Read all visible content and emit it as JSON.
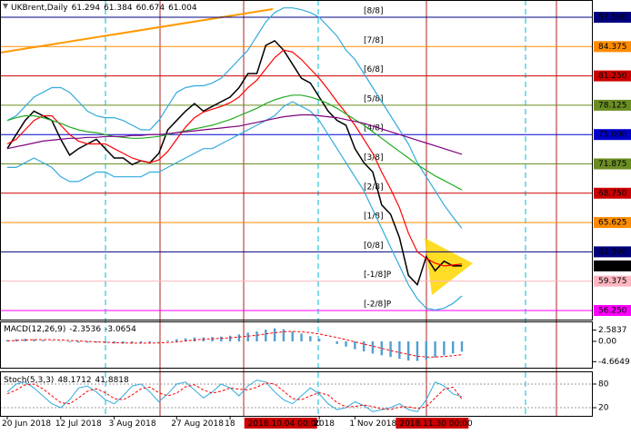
{
  "chart_data": [
    {
      "type": "line",
      "symbol": "UKBrent,Daily",
      "ohlc": [
        61.294,
        61.384,
        60.674,
        61.004
      ],
      "categories": [
        "20 Jun 2018",
        null,
        null,
        null,
        null,
        null,
        "12 Jul 2018",
        null,
        null,
        null,
        null,
        null,
        "3 Aug 2018",
        null,
        null,
        null,
        null,
        null,
        null,
        "27 Aug 2018",
        null,
        null,
        null,
        null,
        null,
        "18",
        null,
        "2018.10.04 00:00",
        null,
        null,
        null,
        null,
        null,
        null,
        null,
        "2018",
        null,
        null,
        null,
        "1 Nov 2018",
        null,
        null,
        null,
        null,
        "2018.11.30 00:00",
        null,
        null,
        null,
        null,
        null,
        null,
        null
      ],
      "series": [
        {
          "color": "#000000",
          "values": [
            73.5,
            75,
            76.5,
            77.5,
            77,
            76.5,
            74.5,
            72.8,
            73.5,
            74,
            74.5,
            73.5,
            72.5,
            72.5,
            71.8,
            72.2,
            72,
            73,
            75.5,
            76.5,
            77.5,
            78.3,
            77.5,
            78,
            78.5,
            79,
            80,
            81.5,
            81.5,
            84.5,
            85,
            84,
            82.5,
            81,
            80.5,
            79,
            77.5,
            76.5,
            76,
            73.5,
            72,
            71,
            67.5,
            66.5,
            64,
            60,
            59,
            62,
            60.5,
            61.5,
            61,
            61.004
          ]
        },
        {
          "color": "#ff0000",
          "values": [
            74,
            74.5,
            75.5,
            76.5,
            77,
            77,
            76,
            75,
            74.3,
            74,
            74,
            74,
            73.5,
            73,
            72.5,
            72.2,
            72,
            72.3,
            73.2,
            74.5,
            75.8,
            76.8,
            77.4,
            77.7,
            78,
            78.4,
            79,
            80,
            80.8,
            82,
            83.2,
            84,
            83.8,
            83,
            82,
            81,
            79.8,
            78.5,
            77.3,
            76,
            74.5,
            73,
            71,
            69.2,
            67.2,
            64.5,
            62.5,
            61.8,
            61.3,
            61,
            61.1,
            61.2
          ]
        },
        {
          "color": "#33aadd",
          "values": [
            76.5,
            77,
            78,
            79,
            79.5,
            80,
            80,
            79.5,
            78.5,
            77.5,
            77,
            76.8,
            76.8,
            76.5,
            76,
            75.5,
            75.5,
            76.5,
            78,
            79.5,
            80,
            80.2,
            80.2,
            80.5,
            81,
            82,
            83,
            84,
            85.5,
            87,
            88,
            88.5,
            88.5,
            88.3,
            88,
            87.5,
            86.5,
            85.5,
            84,
            83,
            81.5,
            80,
            78.5,
            77,
            75.5,
            74,
            72,
            70.5,
            69,
            67.5,
            66.2,
            65
          ]
        },
        {
          "color": "#33aadd",
          "values": [
            71.5,
            71.5,
            72,
            72.5,
            72,
            71.5,
            70.5,
            70,
            70,
            70.5,
            71,
            71,
            70.5,
            70.5,
            70.5,
            70.5,
            71,
            71,
            71.5,
            72,
            72.5,
            73,
            73.5,
            73.5,
            74,
            74.5,
            75,
            75.5,
            76,
            76.5,
            77,
            78,
            78.5,
            78,
            77.5,
            76.5,
            75,
            73.5,
            72,
            70.5,
            69,
            67,
            65,
            63,
            61,
            59,
            57.5,
            56.5,
            56.3,
            56.5,
            57,
            57.8
          ]
        },
        {
          "color": "#22aa22",
          "values": [
            76.5,
            76.8,
            77,
            77,
            76.8,
            76.5,
            76.2,
            75.8,
            75.5,
            75.3,
            75.2,
            75,
            74.8,
            74.7,
            74.6,
            74.6,
            74.7,
            74.8,
            75,
            75.2,
            75.4,
            75.6,
            75.8,
            76,
            76.3,
            76.6,
            77,
            77.4,
            77.8,
            78.3,
            78.7,
            79,
            79.2,
            79.2,
            79,
            78.7,
            78.3,
            77.8,
            77.2,
            76.6,
            76,
            75.3,
            74.6,
            73.9,
            73.2,
            72.5,
            71.8,
            71.2,
            70.6,
            70.1,
            69.6,
            69.1
          ]
        },
        {
          "color": "#800080",
          "values": [
            73.5,
            73.7,
            73.9,
            74.1,
            74.3,
            74.4,
            74.5,
            74.6,
            74.6,
            74.7,
            74.7,
            74.8,
            74.8,
            74.8,
            74.9,
            74.9,
            75,
            75,
            75.1,
            75.2,
            75.3,
            75.4,
            75.5,
            75.6,
            75.7,
            75.8,
            75.9,
            76.1,
            76.3,
            76.5,
            76.7,
            76.9,
            77,
            77.1,
            77.1,
            77,
            76.9,
            76.8,
            76.6,
            76.4,
            76.2,
            75.9,
            75.6,
            75.3,
            75,
            74.7,
            74.4,
            74.1,
            73.8,
            73.5,
            73.2,
            72.9
          ]
        }
      ],
      "ylim": [
        55.28,
        89.34
      ],
      "yticks": [
        {
          "value": 87.5,
          "label": "87.500"
        },
        84.375,
        {
          "value": 81.25,
          "label": "81.250"
        },
        78.125,
        {
          "value": 75,
          "label": "75.000"
        },
        71.875,
        {
          "value": 68.75,
          "label": "68.750"
        },
        65.625,
        {
          "value": 62.5,
          "label": "62.500"
        },
        61.004,
        59.375,
        {
          "value": 56.25,
          "label": "56.250"
        }
      ],
      "murray_levels": [
        {
          "value": 87.5,
          "label": "[8/8]",
          "color": "#000080"
        },
        {
          "value": 84.375,
          "label": "[7/8]",
          "color": "#ff8c00"
        },
        {
          "value": 81.25,
          "label": "[6/8]",
          "color": "#cc0000"
        },
        {
          "value": 78.125,
          "label": "[5/8]",
          "color": "#6b8e23"
        },
        {
          "value": 75,
          "label": "[4/8]",
          "color": "#0000cd"
        },
        {
          "value": 71.875,
          "label": "[3/8]",
          "color": "#6b8e23"
        },
        {
          "value": 68.75,
          "label": "[2/8]",
          "color": "#cc0000"
        },
        {
          "value": 65.625,
          "label": "[1/8]",
          "color": "#ff8c00"
        },
        {
          "value": 62.5,
          "label": "[0/8]",
          "color": "#000080"
        },
        {
          "value": 59.375,
          "label": "[-1/8]P",
          "color": "#ffb6c1"
        },
        {
          "value": 56.25,
          "label": "[-2/8]P",
          "color": "#ff00ff"
        }
      ]
    },
    {
      "type": "macd",
      "title": "MACD(12,26,9)",
      "readout": [
        -2.3536,
        -3.0654
      ],
      "histogram": {
        "color": "#4f9fcf",
        "values": [
          0.3,
          0.5,
          0.6,
          0.5,
          0.3,
          0.1,
          -0.1,
          -0.2,
          -0.3,
          -0.3,
          -0.3,
          -0.4,
          -0.5,
          -0.5,
          -0.5,
          -0.4,
          -0.3,
          -0.1,
          0.2,
          0.5,
          0.7,
          0.9,
          0.9,
          1.0,
          1.1,
          1.3,
          1.6,
          2.0,
          2.3,
          2.7,
          3.0,
          2.8,
          2.3,
          1.8,
          1.2,
          0.6,
          0,
          -0.6,
          -1.2,
          -1.8,
          -2.3,
          -2.8,
          -3.2,
          -3.6,
          -4.0,
          -4.4,
          -4.5,
          -4.2,
          -3.7,
          -3.2,
          -2.8,
          -2.3536
        ]
      },
      "signal": {
        "color": "#ff0000",
        "dashed": true,
        "values": [
          0.1,
          0.2,
          0.3,
          0.4,
          0.4,
          0.4,
          0.3,
          0.2,
          0.1,
          0,
          -0.1,
          -0.2,
          -0.3,
          -0.35,
          -0.4,
          -0.4,
          -0.4,
          -0.35,
          -0.25,
          -0.1,
          0.1,
          0.3,
          0.5,
          0.6,
          0.7,
          0.8,
          1.0,
          1.2,
          1.4,
          1.7,
          2.0,
          2.2,
          2.3,
          2.2,
          2.0,
          1.7,
          1.3,
          0.9,
          0.4,
          -0.1,
          -0.6,
          -1.1,
          -1.6,
          -2.1,
          -2.6,
          -3.0,
          -3.4,
          -3.6,
          -3.6,
          -3.5,
          -3.3,
          -3.0654
        ]
      },
      "ylim": [
        -6.06,
        4.38
      ],
      "yticks": [
        2.5837,
        {
          "value": 0,
          "label": "0.00"
        },
        -4.6649
      ]
    },
    {
      "type": "stochastic",
      "title": "Stoch(5,3,3)",
      "readout": [
        48.1712,
        41.8818
      ],
      "series": [
        {
          "color": "#33aadd",
          "values": [
            60,
            80,
            85,
            70,
            50,
            30,
            20,
            40,
            70,
            75,
            60,
            40,
            30,
            50,
            75,
            80,
            60,
            35,
            55,
            80,
            85,
            65,
            45,
            60,
            80,
            70,
            50,
            75,
            90,
            85,
            60,
            40,
            30,
            50,
            70,
            55,
            30,
            15,
            20,
            35,
            25,
            10,
            15,
            20,
            30,
            15,
            10,
            40,
            85,
            75,
            55,
            48.1712
          ]
        },
        {
          "color": "#ff0000",
          "dashed": true,
          "values": [
            55,
            65,
            78,
            80,
            68,
            50,
            33,
            30,
            45,
            62,
            68,
            58,
            43,
            40,
            52,
            68,
            72,
            58,
            50,
            57,
            73,
            78,
            65,
            57,
            62,
            70,
            67,
            65,
            72,
            83,
            80,
            62,
            43,
            40,
            50,
            58,
            52,
            33,
            22,
            23,
            27,
            23,
            17,
            15,
            22,
            22,
            18,
            22,
            45,
            67,
            72,
            41.8818
          ]
        }
      ],
      "ylim": [
        -0.7,
        109.9
      ],
      "yticks": [
        20,
        80
      ]
    }
  ]
}
